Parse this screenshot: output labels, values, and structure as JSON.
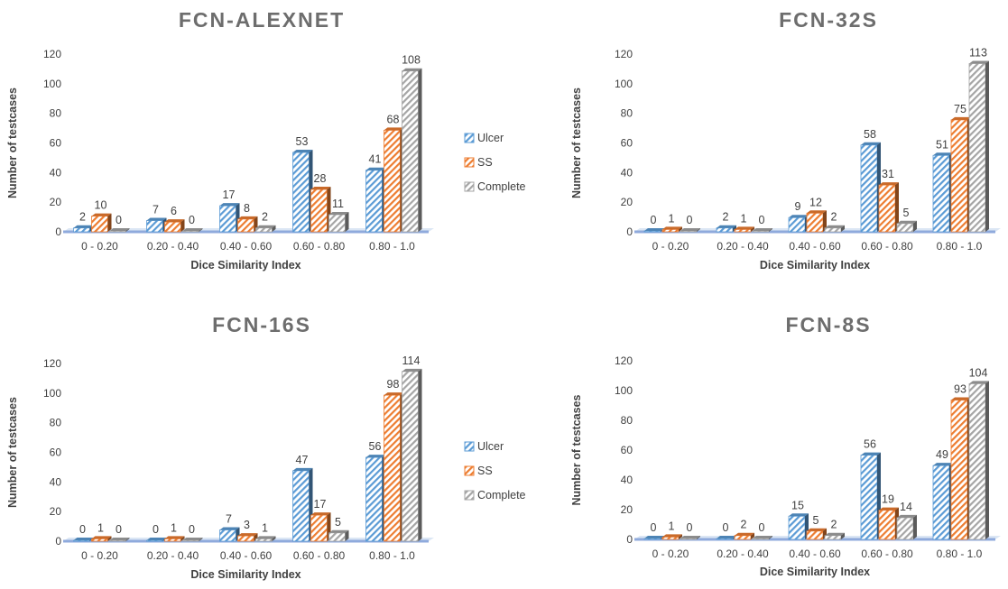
{
  "chart_data": [
    {
      "type": "bar",
      "title": "FCN-ALEXNET",
      "xlabel": "Dice Similarity Index",
      "ylabel": "Number of testcases",
      "ylim": [
        0,
        120
      ],
      "yticks": [
        0,
        20,
        40,
        60,
        80,
        100,
        120
      ],
      "categories": [
        "0 - 0.20",
        "0.20 - 0.40",
        "0.40 - 0.60",
        "0.60 - 0.80",
        "0.80 - 1.0"
      ],
      "series": [
        {
          "name": "Ulcer",
          "values": [
            2,
            7,
            17,
            53,
            41
          ]
        },
        {
          "name": "SS",
          "values": [
            10,
            6,
            8,
            28,
            68
          ]
        },
        {
          "name": "Complete",
          "values": [
            0,
            0,
            2,
            11,
            108
          ]
        }
      ],
      "legend": true
    },
    {
      "type": "bar",
      "title": "FCN-32S",
      "xlabel": "Dice Similarity Index",
      "ylabel": "Number of testcases",
      "ylim": [
        0,
        120
      ],
      "yticks": [
        0,
        20,
        40,
        60,
        80,
        100,
        120
      ],
      "categories": [
        "0 - 0.20",
        "0.20 - 0.40",
        "0.40 - 0.60",
        "0.60 - 0.80",
        "0.80 - 1.0"
      ],
      "series": [
        {
          "name": "Ulcer",
          "values": [
            0,
            2,
            9,
            58,
            51
          ]
        },
        {
          "name": "SS",
          "values": [
            1,
            1,
            12,
            31,
            75
          ]
        },
        {
          "name": "Complete",
          "values": [
            0,
            0,
            2,
            5,
            113
          ]
        }
      ],
      "legend": false
    },
    {
      "type": "bar",
      "title": "FCN-16S",
      "xlabel": "Dice Similarity Index",
      "ylabel": "Number of testcases",
      "ylim": [
        0,
        120
      ],
      "yticks": [
        0,
        20,
        40,
        60,
        80,
        100,
        120
      ],
      "categories": [
        "0 - 0.20",
        "0.20 - 0.40",
        "0.40 - 0.60",
        "0.60 - 0.80",
        "0.80 - 1.0"
      ],
      "series": [
        {
          "name": "Ulcer",
          "values": [
            0,
            0,
            7,
            47,
            56
          ]
        },
        {
          "name": "SS",
          "values": [
            1,
            1,
            3,
            17,
            98
          ]
        },
        {
          "name": "Complete",
          "values": [
            0,
            0,
            1,
            5,
            114
          ]
        }
      ],
      "legend": true
    },
    {
      "type": "bar",
      "title": "FCN-8S",
      "xlabel": "Dice Similarity Index",
      "ylabel": "Number of testcases",
      "ylim": [
        0,
        120
      ],
      "yticks": [
        0,
        20,
        40,
        60,
        80,
        100,
        120
      ],
      "categories": [
        "0 - 0.20",
        "0.20 - 0.40",
        "0.40 - 0.60",
        "0.60 - 0.80",
        "0.80 - 1.0"
      ],
      "series": [
        {
          "name": "Ulcer",
          "values": [
            0,
            0,
            15,
            56,
            49
          ]
        },
        {
          "name": "SS",
          "values": [
            1,
            2,
            5,
            19,
            93
          ]
        },
        {
          "name": "Complete",
          "values": [
            0,
            0,
            2,
            14,
            104
          ]
        }
      ],
      "legend": false
    }
  ],
  "colors": {
    "Ulcer": "#5b9bd5",
    "SS": "#ed7d31",
    "Complete": "#a5a5a5",
    "axis": "#8faadc",
    "title": "#6d6d6d"
  }
}
